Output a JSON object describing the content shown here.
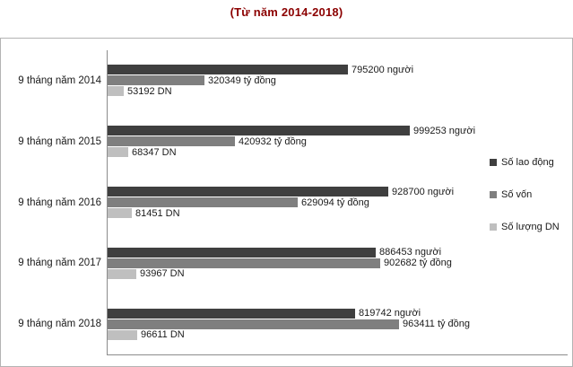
{
  "title": "(Từ năm 2014-2018)",
  "title_color": "#8b0000",
  "chart_data": {
    "type": "bar",
    "orientation": "horizontal",
    "title": "(Từ năm 2014-2018)",
    "categories": [
      "9 tháng năm 2014",
      "9 tháng năm 2015",
      "9 tháng năm 2016",
      "9 tháng năm 2017",
      "9 tháng năm 2018"
    ],
    "series": [
      {
        "name": "Số lao động",
        "color": "#3f3f3f",
        "values": [
          795200,
          999253,
          928700,
          886453,
          819742
        ],
        "labels": [
          "795200 người",
          "999253 người",
          "928700 người",
          "886453 người",
          "819742 người"
        ]
      },
      {
        "name": "Số vốn",
        "color": "#7f7f7f",
        "values": [
          320349,
          420932,
          629094,
          902682,
          963411
        ],
        "labels": [
          "320349 tỷ đồng",
          "420932 tỷ đồng",
          "629094 tỷ đồng",
          "902682 tỷ đồng",
          "963411 tỷ đồng"
        ]
      },
      {
        "name": "Số lượng DN",
        "color": "#bfbfbf",
        "values": [
          53192,
          68347,
          81451,
          93967,
          96611
        ],
        "labels": [
          "53192 DN",
          "68347 DN",
          "81451 DN",
          "93967 DN",
          "96611 DN"
        ]
      }
    ],
    "legend_position": "right",
    "xlim": [
      0,
      1320000
    ],
    "grid": false,
    "data_labels": true
  }
}
